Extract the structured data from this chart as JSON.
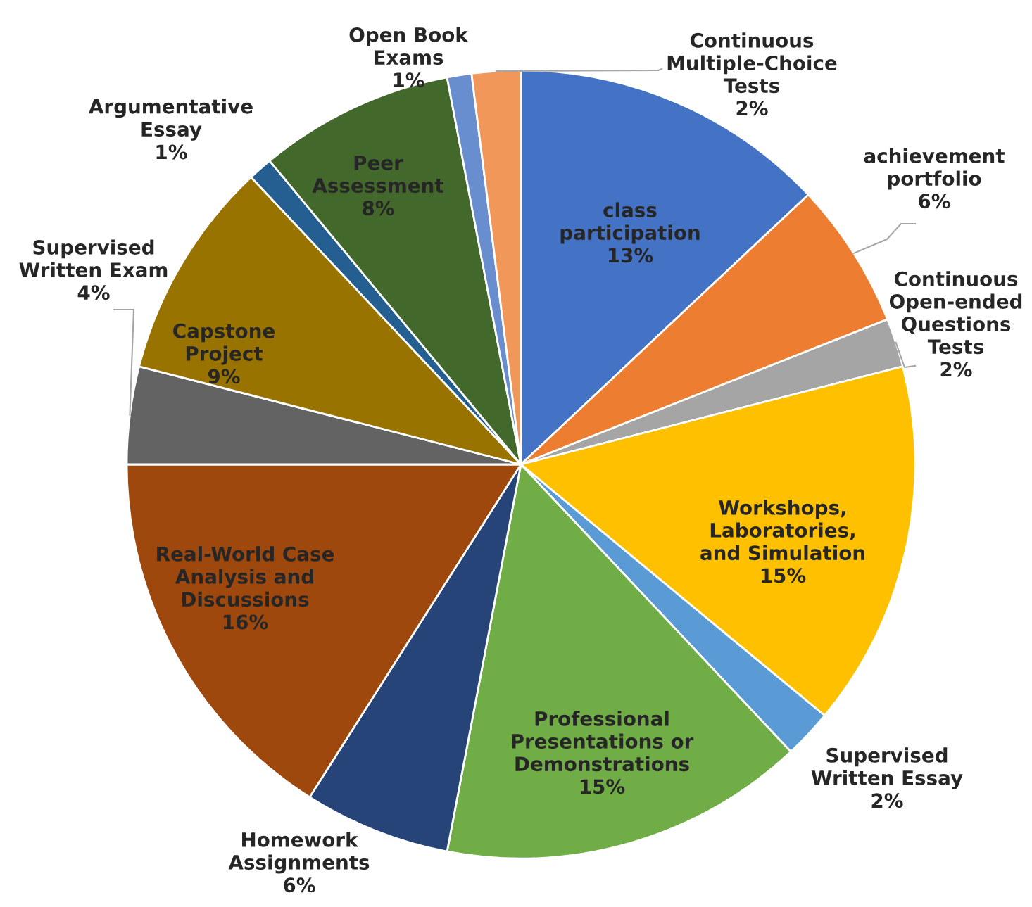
{
  "chart_data": {
    "type": "pie",
    "categories": [
      "class\nparticipation",
      "achievement\nportfolio",
      "Continuous\nOpen-ended\nQuestions\nTests",
      "Workshops,\nLaboratories,\nand Simulation",
      "Supervised\nWritten Essay",
      "Professional\nPresentations or\nDemonstrations",
      "Homework\nAssignments",
      "Real-World Case\nAnalysis and\nDiscussions",
      "Supervised\nWritten Exam",
      "Capstone\nProject",
      "Argumentative\nEssay",
      "Peer\nAssessment",
      "Open Book\nExams",
      "Continuous\nMultiple-Choice\nTests"
    ],
    "values": [
      13,
      6,
      2,
      15,
      2,
      15,
      6,
      16,
      4,
      9,
      1,
      8,
      1,
      2
    ],
    "value_labels": [
      "13%",
      "6%",
      "2%",
      "15%",
      "2%",
      "15%",
      "6%",
      "16%",
      "4%",
      "9%",
      "1%",
      "8%",
      "1%",
      "2%"
    ],
    "colors": [
      "#4472c4",
      "#ed7d31",
      "#a5a5a5",
      "#ffc000",
      "#5b9bd5",
      "#70ad47",
      "#264478",
      "#9e480e",
      "#636363",
      "#997300",
      "#255e91",
      "#43682b",
      "#698ed0",
      "#f1975a"
    ]
  }
}
